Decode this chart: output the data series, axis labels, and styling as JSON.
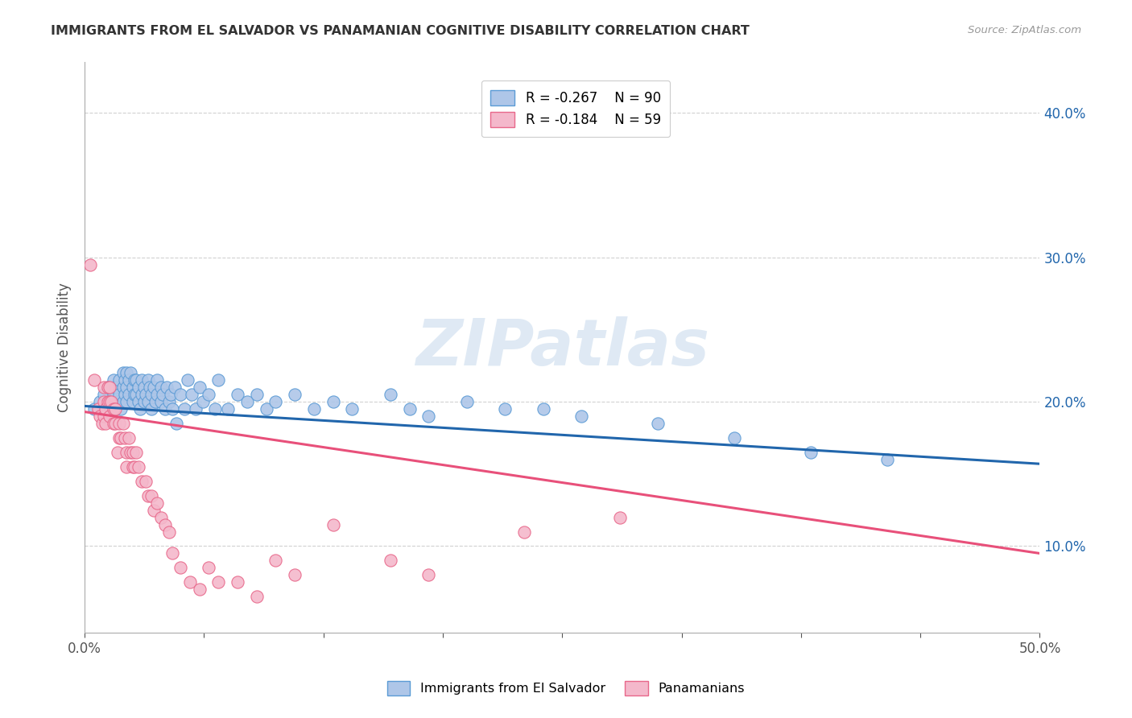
{
  "title": "IMMIGRANTS FROM EL SALVADOR VS PANAMANIAN COGNITIVE DISABILITY CORRELATION CHART",
  "source": "Source: ZipAtlas.com",
  "ylabel": "Cognitive Disability",
  "y_ticks": [
    0.1,
    0.2,
    0.3,
    0.4
  ],
  "y_tick_labels": [
    "10.0%",
    "20.0%",
    "30.0%",
    "40.0%"
  ],
  "xlim": [
    0.0,
    0.5
  ],
  "ylim": [
    0.04,
    0.435
  ],
  "blue_R": "-0.267",
  "blue_N": "90",
  "pink_R": "-0.184",
  "pink_N": "59",
  "blue_color": "#aec6e8",
  "pink_color": "#f4b8cb",
  "blue_edge_color": "#5b9bd5",
  "pink_edge_color": "#e8678a",
  "blue_line_color": "#2166ac",
  "pink_line_color": "#e8507a",
  "watermark": "ZIPatlas",
  "legend_label_blue": "Immigrants from El Salvador",
  "legend_label_pink": "Panamanians",
  "blue_scatter_x": [
    0.005,
    0.008,
    0.01,
    0.01,
    0.012,
    0.013,
    0.014,
    0.015,
    0.015,
    0.015,
    0.016,
    0.017,
    0.018,
    0.018,
    0.019,
    0.02,
    0.02,
    0.02,
    0.021,
    0.021,
    0.022,
    0.022,
    0.022,
    0.023,
    0.023,
    0.024,
    0.025,
    0.025,
    0.026,
    0.026,
    0.027,
    0.027,
    0.028,
    0.028,
    0.029,
    0.03,
    0.03,
    0.031,
    0.031,
    0.032,
    0.033,
    0.033,
    0.034,
    0.035,
    0.035,
    0.036,
    0.037,
    0.038,
    0.038,
    0.04,
    0.04,
    0.041,
    0.042,
    0.043,
    0.044,
    0.045,
    0.046,
    0.047,
    0.048,
    0.05,
    0.052,
    0.054,
    0.056,
    0.058,
    0.06,
    0.062,
    0.065,
    0.068,
    0.07,
    0.075,
    0.08,
    0.085,
    0.09,
    0.095,
    0.1,
    0.11,
    0.12,
    0.13,
    0.14,
    0.16,
    0.17,
    0.18,
    0.2,
    0.22,
    0.24,
    0.26,
    0.3,
    0.34,
    0.38,
    0.42
  ],
  "blue_scatter_y": [
    0.195,
    0.2,
    0.205,
    0.195,
    0.21,
    0.2,
    0.195,
    0.215,
    0.205,
    0.195,
    0.21,
    0.2,
    0.215,
    0.205,
    0.195,
    0.22,
    0.21,
    0.2,
    0.215,
    0.205,
    0.22,
    0.21,
    0.2,
    0.215,
    0.205,
    0.22,
    0.21,
    0.2,
    0.215,
    0.205,
    0.215,
    0.205,
    0.21,
    0.2,
    0.195,
    0.215,
    0.205,
    0.21,
    0.2,
    0.205,
    0.215,
    0.2,
    0.21,
    0.205,
    0.195,
    0.21,
    0.2,
    0.215,
    0.205,
    0.21,
    0.2,
    0.205,
    0.195,
    0.21,
    0.2,
    0.205,
    0.195,
    0.21,
    0.185,
    0.205,
    0.195,
    0.215,
    0.205,
    0.195,
    0.21,
    0.2,
    0.205,
    0.195,
    0.215,
    0.195,
    0.205,
    0.2,
    0.205,
    0.195,
    0.2,
    0.205,
    0.195,
    0.2,
    0.195,
    0.205,
    0.195,
    0.19,
    0.2,
    0.195,
    0.195,
    0.19,
    0.185,
    0.175,
    0.165,
    0.16
  ],
  "pink_scatter_x": [
    0.003,
    0.005,
    0.007,
    0.008,
    0.009,
    0.01,
    0.01,
    0.01,
    0.011,
    0.011,
    0.012,
    0.012,
    0.013,
    0.013,
    0.013,
    0.014,
    0.015,
    0.015,
    0.016,
    0.016,
    0.017,
    0.018,
    0.018,
    0.019,
    0.02,
    0.021,
    0.022,
    0.022,
    0.023,
    0.024,
    0.025,
    0.025,
    0.026,
    0.027,
    0.028,
    0.03,
    0.032,
    0.033,
    0.035,
    0.036,
    0.038,
    0.04,
    0.042,
    0.044,
    0.046,
    0.05,
    0.055,
    0.06,
    0.065,
    0.07,
    0.08,
    0.09,
    0.1,
    0.11,
    0.13,
    0.16,
    0.18,
    0.23,
    0.28
  ],
  "pink_scatter_y": [
    0.295,
    0.215,
    0.195,
    0.19,
    0.185,
    0.21,
    0.2,
    0.19,
    0.195,
    0.185,
    0.21,
    0.2,
    0.21,
    0.2,
    0.19,
    0.2,
    0.195,
    0.185,
    0.195,
    0.185,
    0.165,
    0.185,
    0.175,
    0.175,
    0.185,
    0.175,
    0.165,
    0.155,
    0.175,
    0.165,
    0.165,
    0.155,
    0.155,
    0.165,
    0.155,
    0.145,
    0.145,
    0.135,
    0.135,
    0.125,
    0.13,
    0.12,
    0.115,
    0.11,
    0.095,
    0.085,
    0.075,
    0.07,
    0.085,
    0.075,
    0.075,
    0.065,
    0.09,
    0.08,
    0.115,
    0.09,
    0.08,
    0.11,
    0.12
  ],
  "blue_line_x": [
    0.0,
    0.5
  ],
  "blue_line_y": [
    0.197,
    0.157
  ],
  "pink_line_x": [
    0.0,
    0.5
  ],
  "pink_line_y": [
    0.193,
    0.095
  ],
  "x_tick_positions": [
    0.0,
    0.0625,
    0.125,
    0.1875,
    0.25,
    0.3125,
    0.375,
    0.4375,
    0.5
  ],
  "grid_color": "#cccccc",
  "bg_color": "#ffffff",
  "tick_color": "#2166ac",
  "title_color": "#333333",
  "source_color": "#999999"
}
